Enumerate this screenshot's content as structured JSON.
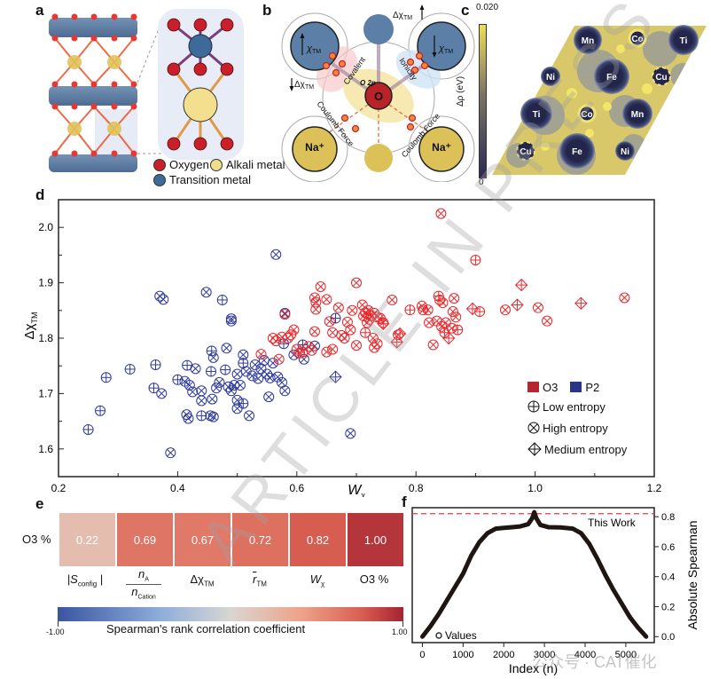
{
  "panels": {
    "a": {
      "letter": "a",
      "legend": [
        {
          "label": "Oxygen",
          "color": "#c8202a"
        },
        {
          "label": "Alkali metal",
          "color": "#f0dd8a"
        },
        {
          "label": "Transition metal",
          "color": "#3d6a99"
        }
      ]
    },
    "b": {
      "letter": "b",
      "labels": {
        "chi_tm": "χ",
        "chi_sub": "TM",
        "delta_chi": "Δχ",
        "covalent": "Covalent",
        "ionicity": "Ionicity",
        "o2p": "O 2p",
        "oxygen": "O",
        "coulomb": "Coulomb Force",
        "na": "Na⁺"
      }
    },
    "c": {
      "letter": "c",
      "colorbar_max": "0.020",
      "colorbar_min": "0",
      "colorbar_label": "Δρ (eV)",
      "atoms": [
        "Mn",
        "Co",
        "Ti",
        "Ni",
        "Fe",
        "Cu",
        "Ti",
        "Co",
        "Mn",
        "Cu",
        "Fe",
        "Ni"
      ]
    },
    "d": {
      "letter": "d"
    },
    "e": {
      "letter": "e"
    },
    "f": {
      "letter": "f"
    }
  },
  "chart_data": [
    {
      "type": "scatter",
      "panel": "d",
      "xlabel": "W",
      "xlabel_sub": "χ",
      "ylabel": "Δχ",
      "ylabel_sub": "TM",
      "xlim": [
        0.2,
        1.2
      ],
      "ylim": [
        1.55,
        2.05
      ],
      "xticks": [
        "0.2",
        "0.4",
        "0.6",
        "0.8",
        "1.0",
        "1.2"
      ],
      "yticks": [
        "1.6",
        "1.7",
        "1.8",
        "1.9",
        "2.0"
      ],
      "legend": {
        "placement": "bottom-right",
        "phases": [
          {
            "name": "O3",
            "color": "#b5262f"
          },
          {
            "name": "P2",
            "color": "#2a3585"
          }
        ],
        "markers": [
          {
            "name": "Low entropy",
            "shape": "circle-plus"
          },
          {
            "name": "High entropy",
            "shape": "circle-x"
          },
          {
            "name": "Medium entropy",
            "shape": "diamond-plus"
          }
        ]
      },
      "series": [
        {
          "name": "P2",
          "color": "#2e3a9a",
          "points": [
            [
              0.25,
              1.635,
              "L"
            ],
            [
              0.27,
              1.669,
              "L"
            ],
            [
              0.28,
              1.729,
              "L"
            ],
            [
              0.32,
              1.744,
              "L"
            ],
            [
              0.36,
              1.71,
              "L"
            ],
            [
              0.363,
              1.752,
              "L"
            ],
            [
              0.373,
              1.7,
              "H"
            ],
            [
              0.37,
              1.876,
              "H"
            ],
            [
              0.376,
              1.87,
              "H"
            ],
            [
              0.388,
              1.593,
              "H"
            ],
            [
              0.4,
              1.725,
              "L"
            ],
            [
              0.412,
              1.722,
              "H"
            ],
            [
              0.415,
              1.662,
              "H"
            ],
            [
              0.418,
              1.655,
              "H"
            ],
            [
              0.416,
              1.751,
              "L"
            ],
            [
              0.42,
              1.715,
              "H"
            ],
            [
              0.425,
              1.703,
              "H"
            ],
            [
              0.43,
              1.745,
              "H"
            ],
            [
              0.44,
              1.66,
              "L"
            ],
            [
              0.44,
              1.705,
              "H"
            ],
            [
              0.44,
              1.687,
              "H"
            ],
            [
              0.448,
              1.883,
              "H"
            ],
            [
              0.455,
              1.66,
              "H"
            ],
            [
              0.456,
              1.74,
              "L"
            ],
            [
              0.457,
              1.777,
              "L"
            ],
            [
              0.46,
              1.765,
              "H"
            ],
            [
              0.46,
              1.658,
              "H"
            ],
            [
              0.458,
              1.69,
              "H"
            ],
            [
              0.465,
              1.71,
              "H"
            ],
            [
              0.47,
              1.72,
              "H"
            ],
            [
              0.475,
              1.869,
              "L"
            ],
            [
              0.48,
              1.743,
              "L"
            ],
            [
              0.482,
              1.782,
              "H"
            ],
            [
              0.49,
              1.835,
              "H"
            ],
            [
              0.49,
              1.831,
              "H"
            ],
            [
              0.485,
              1.712,
              "H"
            ],
            [
              0.49,
              1.705,
              "H"
            ],
            [
              0.495,
              1.715,
              "H"
            ],
            [
              0.5,
              1.735,
              "H"
            ],
            [
              0.5,
              1.688,
              "H"
            ],
            [
              0.5,
              1.673,
              "H"
            ],
            [
              0.505,
              1.715,
              "H"
            ],
            [
              0.51,
              1.77,
              "H"
            ],
            [
              0.51,
              1.755,
              "L"
            ],
            [
              0.51,
              1.682,
              "L"
            ],
            [
              0.515,
              1.74,
              "H"
            ],
            [
              0.52,
              1.66,
              "H"
            ],
            [
              0.525,
              1.732,
              "H"
            ],
            [
              0.53,
              1.752,
              "H"
            ],
            [
              0.535,
              1.727,
              "H"
            ],
            [
              0.54,
              1.745,
              "H"
            ],
            [
              0.545,
              1.76,
              "H"
            ],
            [
              0.55,
              1.735,
              "H"
            ],
            [
              0.553,
              1.694,
              "H"
            ],
            [
              0.555,
              1.728,
              "H"
            ],
            [
              0.56,
              1.755,
              "H"
            ],
            [
              0.565,
              1.951,
              "H"
            ],
            [
              0.568,
              1.73,
              "H"
            ],
            [
              0.575,
              1.72,
              "H"
            ],
            [
              0.58,
              1.705,
              "H"
            ],
            [
              0.58,
              1.845,
              "H"
            ],
            [
              0.578,
              1.79,
              "L"
            ],
            [
              0.595,
              1.77,
              "H"
            ],
            [
              0.61,
              1.788,
              "L"
            ],
            [
              0.612,
              1.762,
              "H"
            ],
            [
              0.63,
              1.786,
              "H"
            ],
            [
              0.665,
              1.836,
              "L"
            ],
            [
              0.665,
              1.73,
              "M"
            ],
            [
              0.69,
              1.628,
              "H"
            ]
          ]
        },
        {
          "name": "O3",
          "color": "#e8282c",
          "points": [
            [
              0.54,
              1.771,
              "H"
            ],
            [
              0.56,
              1.8,
              "H"
            ],
            [
              0.565,
              1.795,
              "H"
            ],
            [
              0.57,
              1.762,
              "H"
            ],
            [
              0.575,
              1.802,
              "H"
            ],
            [
              0.58,
              1.843,
              "H"
            ],
            [
              0.585,
              1.8,
              "H"
            ],
            [
              0.59,
              1.806,
              "H"
            ],
            [
              0.595,
              1.815,
              "H"
            ],
            [
              0.6,
              1.78,
              "H"
            ],
            [
              0.605,
              1.773,
              "H"
            ],
            [
              0.61,
              1.775,
              "H"
            ],
            [
              0.62,
              1.785,
              "H"
            ],
            [
              0.625,
              1.778,
              "H"
            ],
            [
              0.63,
              1.812,
              "H"
            ],
            [
              0.63,
              1.873,
              "H"
            ],
            [
              0.632,
              1.865,
              "H"
            ],
            [
              0.632,
              1.852,
              "H"
            ],
            [
              0.64,
              1.893,
              "H"
            ],
            [
              0.65,
              1.87,
              "H"
            ],
            [
              0.65,
              1.775,
              "H"
            ],
            [
              0.655,
              1.83,
              "H"
            ],
            [
              0.66,
              1.81,
              "H"
            ],
            [
              0.66,
              1.78,
              "H"
            ],
            [
              0.67,
              1.855,
              "H"
            ],
            [
              0.675,
              1.805,
              "H"
            ],
            [
              0.68,
              1.8,
              "H"
            ],
            [
              0.685,
              1.829,
              "H"
            ],
            [
              0.69,
              1.815,
              "H"
            ],
            [
              0.693,
              1.85,
              "H"
            ],
            [
              0.7,
              1.9,
              "H"
            ],
            [
              0.7,
              1.787,
              "H"
            ],
            [
              0.71,
              1.86,
              "H"
            ],
            [
              0.712,
              1.84,
              "H"
            ],
            [
              0.715,
              1.846,
              "H"
            ],
            [
              0.72,
              1.85,
              "H"
            ],
            [
              0.725,
              1.84,
              "H"
            ],
            [
              0.722,
              1.834,
              "H"
            ],
            [
              0.718,
              1.828,
              "H"
            ],
            [
              0.73,
              1.845,
              "H"
            ],
            [
              0.735,
              1.838,
              "H"
            ],
            [
              0.74,
              1.836,
              "H"
            ],
            [
              0.715,
              1.81,
              "L"
            ],
            [
              0.728,
              1.8,
              "H"
            ],
            [
              0.73,
              1.783,
              "H"
            ],
            [
              0.735,
              1.79,
              "H"
            ],
            [
              0.745,
              1.828,
              "H"
            ],
            [
              0.745,
              1.826,
              "M"
            ],
            [
              0.76,
              1.869,
              "H"
            ],
            [
              0.77,
              1.806,
              "H"
            ],
            [
              0.768,
              1.793,
              "M"
            ],
            [
              0.773,
              1.808,
              "M"
            ],
            [
              0.79,
              1.851,
              "L"
            ],
            [
              0.81,
              1.858,
              "H"
            ],
            [
              0.812,
              1.851,
              "H"
            ],
            [
              0.82,
              1.851,
              "H"
            ],
            [
              0.822,
              1.828,
              "H"
            ],
            [
              0.829,
              1.788,
              "H"
            ],
            [
              0.835,
              1.831,
              "H"
            ],
            [
              0.838,
              1.876,
              "L"
            ],
            [
              0.84,
              1.869,
              "L"
            ],
            [
              0.843,
              1.821,
              "H"
            ],
            [
              0.845,
              1.864,
              "H"
            ],
            [
              0.848,
              1.81,
              "L"
            ],
            [
              0.85,
              1.828,
              "H"
            ],
            [
              0.855,
              1.8,
              "M"
            ],
            [
              0.86,
              1.818,
              "H"
            ],
            [
              0.862,
              1.848,
              "H"
            ],
            [
              0.864,
              1.872,
              "H"
            ],
            [
              0.867,
              1.838,
              "H"
            ],
            [
              0.87,
              1.815,
              "L"
            ],
            [
              0.842,
              2.025,
              "H"
            ],
            [
              0.9,
              1.941,
              "L"
            ],
            [
              0.895,
              1.853,
              "M"
            ],
            [
              0.907,
              1.848,
              "L"
            ],
            [
              0.95,
              1.851,
              "H"
            ],
            [
              0.97,
              1.86,
              "M"
            ],
            [
              0.977,
              1.896,
              "M"
            ],
            [
              1.005,
              1.855,
              "H"
            ],
            [
              1.02,
              1.831,
              "H"
            ],
            [
              1.077,
              1.863,
              "M"
            ],
            [
              1.15,
              1.873,
              "H"
            ]
          ]
        }
      ]
    },
    {
      "type": "heatmap",
      "panel": "e",
      "row_label": "O3 %",
      "categories": [
        "|S_config|",
        "n_A / n_Cation",
        "Δχ_TM",
        "r̄_TM",
        "W_χ",
        "O3 %"
      ],
      "category_parts": [
        {
          "main": "|S",
          "sub": "config",
          "tail": " |"
        },
        {
          "num": "n",
          "num_sub": "A",
          "den": "n",
          "den_sub": "Cation"
        },
        {
          "main": "Δχ",
          "sub": "TM"
        },
        {
          "main": "r",
          "sub": "TM",
          "overline": true
        },
        {
          "main": "W",
          "sub": "χ"
        },
        {
          "main": "O3 %"
        }
      ],
      "values": [
        0.22,
        0.69,
        0.67,
        0.72,
        0.82,
        1.0
      ],
      "value_labels": [
        "0.22",
        "0.69",
        "0.67",
        "0.72",
        "0.82",
        "1.00"
      ],
      "colorbar": {
        "min": -1.0,
        "max": 1.0,
        "min_label": "-1.00",
        "max_label": "1.00",
        "label": "Spearman's rank correlation coefficient"
      }
    },
    {
      "type": "line",
      "panel": "f",
      "xlabel": "Index (n)",
      "ylabel": "Absolute Spearman",
      "xlim": [
        -250,
        5700
      ],
      "ylim": [
        -0.04,
        0.86
      ],
      "xticks": [
        "0",
        "1000",
        "2000",
        "3000",
        "4000",
        "5000"
      ],
      "yticks": [
        "0.0",
        "0.2",
        "0.4",
        "0.6",
        "0.8"
      ],
      "legend_label": "Values",
      "reference_line": {
        "value": 0.82,
        "label": "This Work",
        "color": "#d9413f"
      },
      "series": [
        {
          "name": "Values",
          "x": [
            0,
            200,
            400,
            600,
            800,
            1000,
            1200,
            1400,
            1600,
            1800,
            2000,
            2200,
            2400,
            2600,
            2700,
            2750,
            2800,
            2900,
            3100,
            3400,
            3700,
            3900,
            4100,
            4300,
            4500,
            4700,
            4900,
            5100,
            5300,
            5500
          ],
          "y": [
            0.0,
            0.07,
            0.15,
            0.24,
            0.33,
            0.42,
            0.54,
            0.63,
            0.69,
            0.72,
            0.725,
            0.73,
            0.735,
            0.75,
            0.79,
            0.83,
            0.79,
            0.745,
            0.73,
            0.728,
            0.72,
            0.69,
            0.62,
            0.52,
            0.41,
            0.31,
            0.22,
            0.13,
            0.06,
            0.0
          ]
        }
      ]
    }
  ],
  "overlays": {
    "watermark": "ARTICLE IN PRESS",
    "source_tag": "公众号 · CAT催化"
  }
}
